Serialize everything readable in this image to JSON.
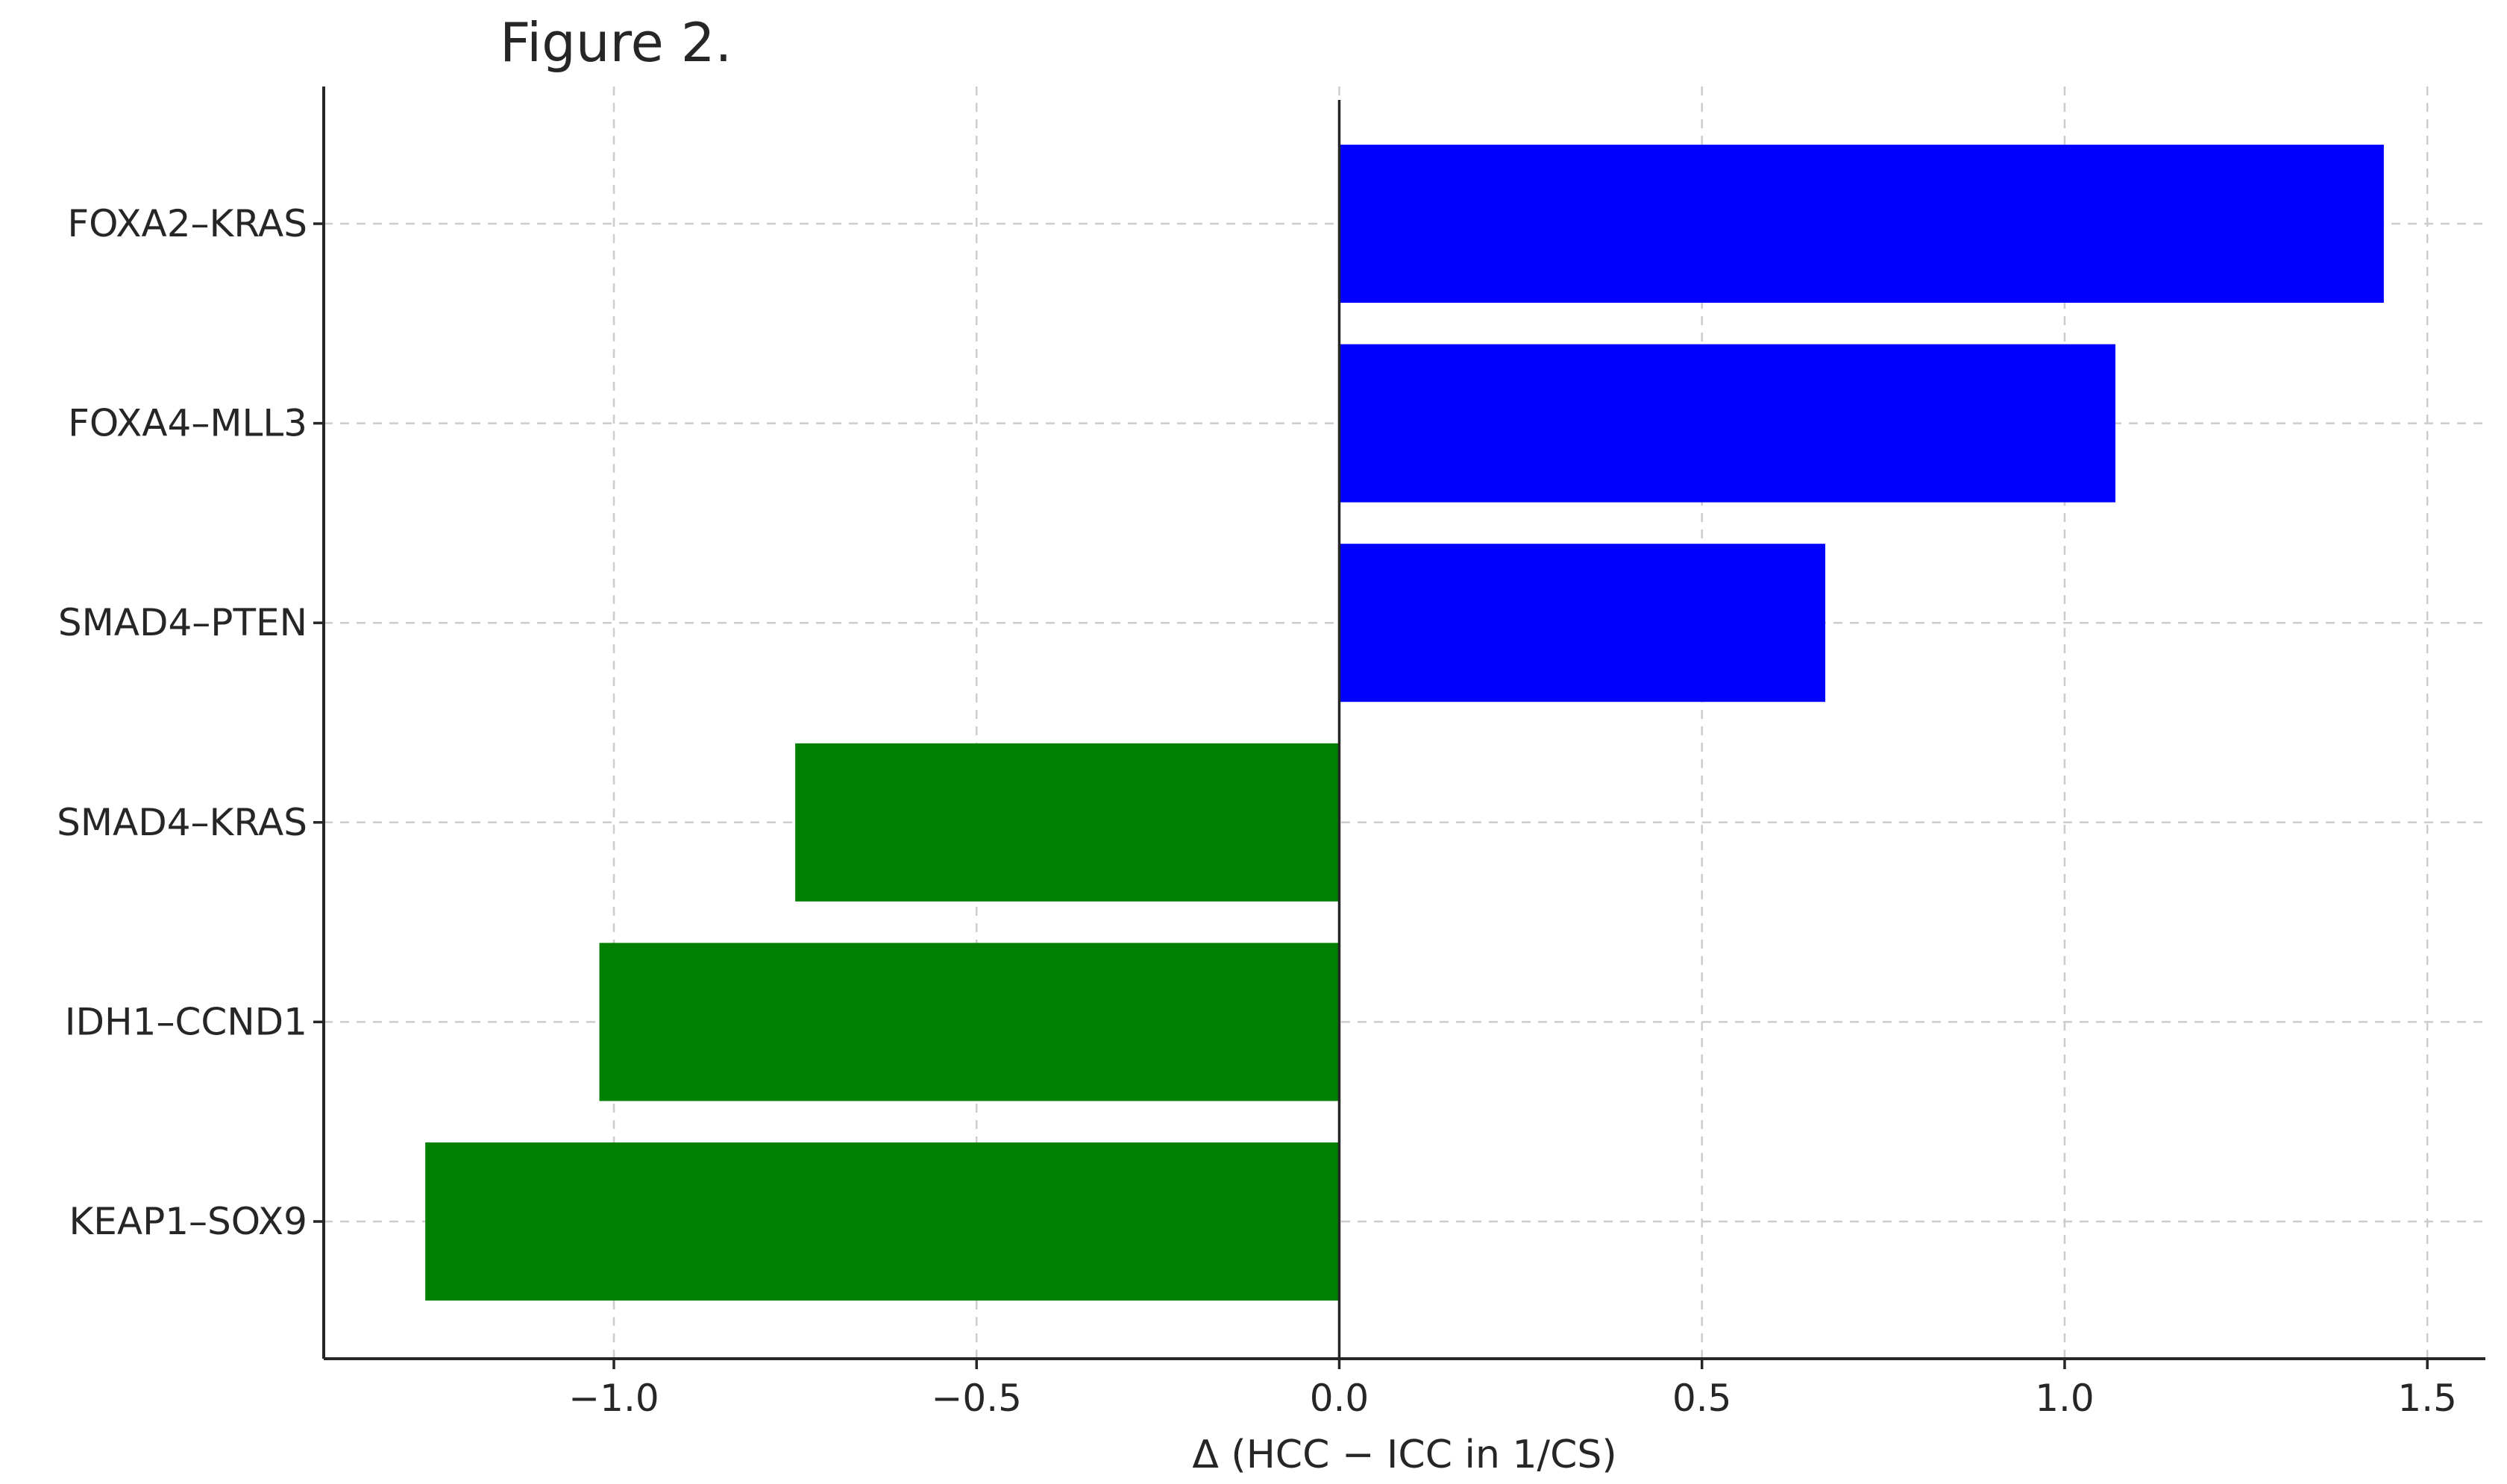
{
  "chart_data": {
    "type": "bar",
    "orientation": "horizontal",
    "title": "Figure 2.",
    "xlabel": "Δ (HCC − ICC in 1/CS)",
    "ylabel": "",
    "categories": [
      "FOXA2–KRAS",
      "FOXA4–MLL3",
      "SMAD4–PTEN",
      "SMAD4–KRAS",
      "IDH1–CCND1",
      "KEAP1–SOX9"
    ],
    "values": [
      1.44,
      1.07,
      0.67,
      -0.75,
      -1.02,
      -1.26
    ],
    "bar_colors": [
      "#0000ff",
      "#0000ff",
      "#0000ff",
      "#008000",
      "#008000",
      "#008000"
    ],
    "xlim": [
      -1.4,
      1.58
    ],
    "xticks": [
      -1.0,
      -0.5,
      0.0,
      0.5,
      1.0,
      1.5
    ],
    "xtick_labels": [
      "−1.0",
      "−0.5",
      "0.0",
      "0.5",
      "1.0",
      "1.5"
    ],
    "grid": true,
    "legend": "none"
  }
}
